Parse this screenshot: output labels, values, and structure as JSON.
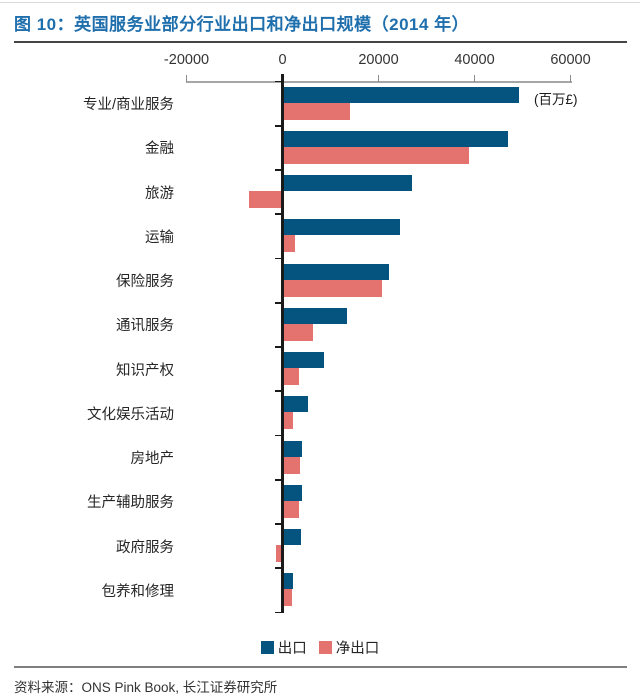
{
  "title": "图 10：英国服务业部分行业出口和净出口规模（2014 年）",
  "unit_label": "(百万£)",
  "footer": {
    "source": "资料来源：ONS Pink Book, 长江证券研究所"
  },
  "colors": {
    "export_bar": "#05547F",
    "net_export_bar": "#E4726E",
    "title": "#1F6FAD",
    "axis_line": "#A6A6A6",
    "zero_axis": "#1A1A1A"
  },
  "legend": [
    {
      "label": "出口",
      "color": "#05547F"
    },
    {
      "label": "净出口",
      "color": "#E4726E"
    }
  ],
  "chart_data": {
    "type": "bar",
    "orientation": "horizontal",
    "title": "英国服务业部分行业出口和净出口规模（2014 年）",
    "unit": "百万£",
    "xlim": [
      -20000,
      60000
    ],
    "x_ticks": [
      -20000,
      0,
      20000,
      40000,
      60000
    ],
    "grid": false,
    "legend_position": "bottom",
    "categories": [
      "专业/商业服务",
      "金融",
      "旅游",
      "运输",
      "保险服务",
      "通讯服务",
      "知识产权",
      "文化娱乐活动",
      "房地产",
      "生产辅助服务",
      "政府服务",
      "包养和修理"
    ],
    "series": [
      {
        "name": "出口",
        "color": "#05547F",
        "values": [
          49000,
          46800,
          26800,
          24200,
          22000,
          13300,
          8400,
          5100,
          3800,
          3800,
          3700,
          1900
        ]
      },
      {
        "name": "净出口",
        "color": "#E4726E",
        "values": [
          13800,
          38700,
          -6900,
          2300,
          20600,
          6100,
          3200,
          2000,
          3400,
          3200,
          -1300,
          1800
        ]
      }
    ]
  }
}
